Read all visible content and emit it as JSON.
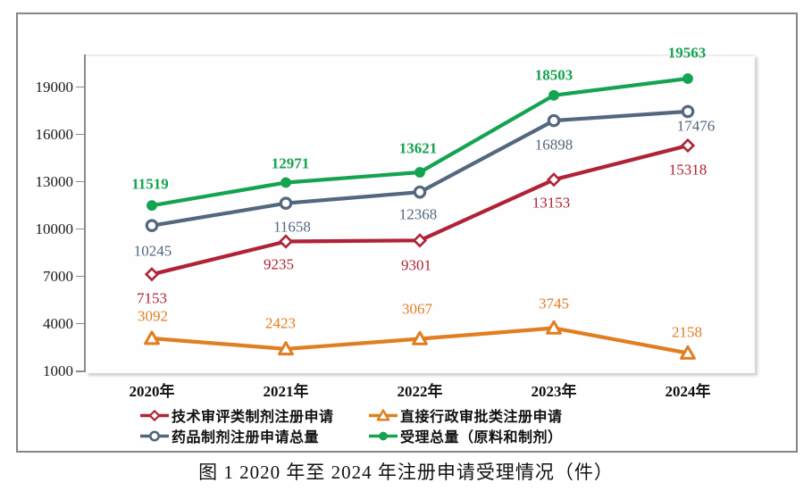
{
  "figure": {
    "caption": "图 1  2020 年至 2024 年注册申请受理情况（件）"
  },
  "chart_data": {
    "type": "line",
    "title": "图 1  2020 年至 2024 年注册申请受理情况（件）",
    "categories": [
      "2020年",
      "2021年",
      "2022年",
      "2023年",
      "2024年"
    ],
    "series": [
      {
        "name": "技术审评类制剂注册申请",
        "values": [
          7153,
          9235,
          9301,
          13153,
          15318
        ],
        "color": "#b02236",
        "marker": "diamond-hollow",
        "label_side": "below",
        "label_bold": false
      },
      {
        "name": "直接行政审批类注册申请",
        "values": [
          3092,
          2423,
          3067,
          3745,
          2158
        ],
        "color": "#e07e20",
        "marker": "triangle-hollow",
        "label_side": "above",
        "label_bold": false
      },
      {
        "name": "药品制剂注册申请总量",
        "values": [
          10245,
          11658,
          12368,
          16898,
          17476
        ],
        "color": "#53677f",
        "marker": "circle-hollow",
        "label_side": "below",
        "label_bold": false
      },
      {
        "name": "受理总量（原料和制剂）",
        "values": [
          11519,
          12971,
          13621,
          18503,
          19563
        ],
        "color": "#14a351",
        "marker": "circle-filled",
        "label_side": "above",
        "label_bold": true
      }
    ],
    "y_ticks": [
      1000,
      4000,
      7000,
      10000,
      13000,
      16000,
      19000
    ],
    "ylim": [
      1000,
      21094
    ],
    "xlabel": "",
    "ylabel": "",
    "grid": false,
    "legend_position": "bottom",
    "legend_order": [
      "技术审评类制剂注册申请",
      "直接行政审批类注册申请",
      "药品制剂注册申请总量",
      "受理总量（原料和制剂）"
    ]
  }
}
